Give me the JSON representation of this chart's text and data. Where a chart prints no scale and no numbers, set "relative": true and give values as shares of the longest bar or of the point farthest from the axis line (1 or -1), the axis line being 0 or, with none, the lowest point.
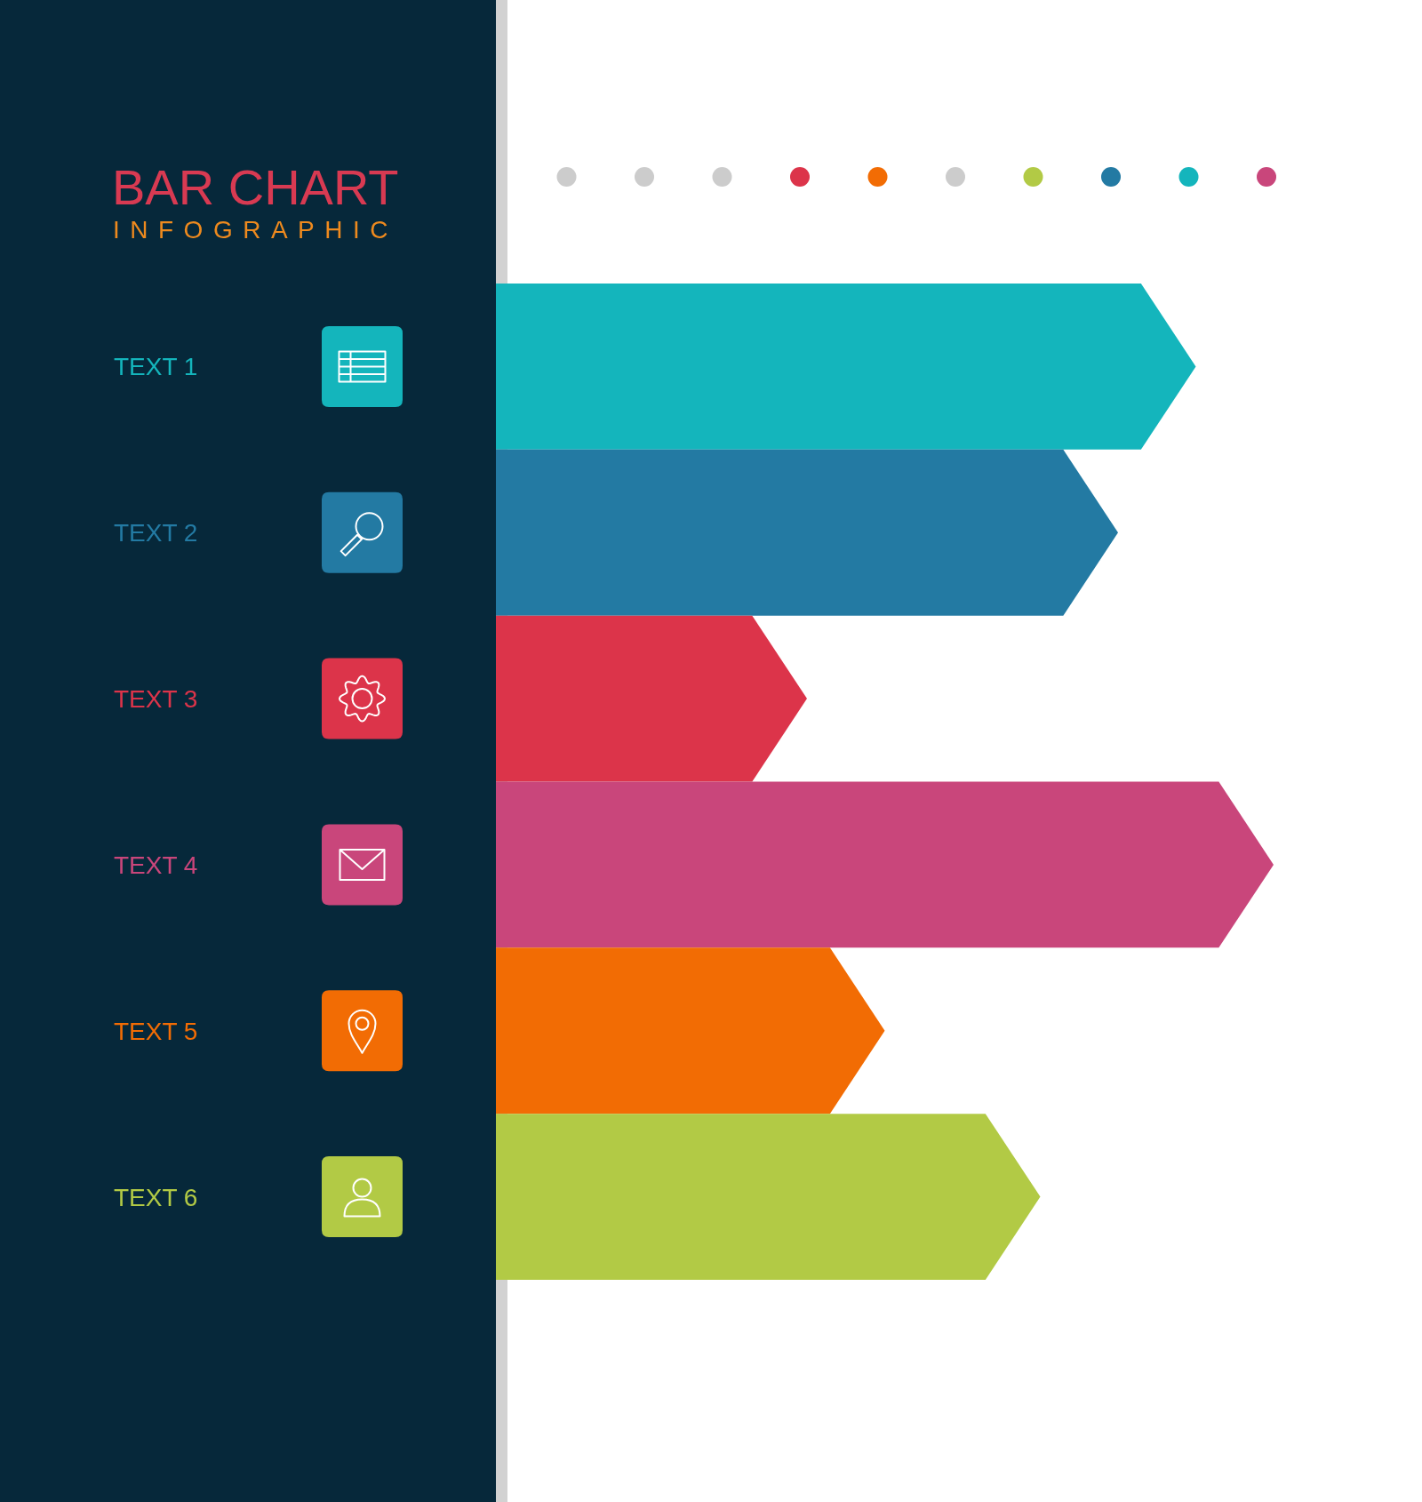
{
  "chart_data": {
    "type": "bar",
    "orientation": "horizontal",
    "relative": true,
    "title": "BAR CHART",
    "subtitle": "INFOGRAPHIC",
    "categories": [
      "TEXT 1",
      "TEXT 2",
      "TEXT 3",
      "TEXT 4",
      "TEXT 5",
      "TEXT 6"
    ],
    "values": [
      0.9,
      0.8,
      0.4,
      1,
      0.5,
      0.7
    ],
    "colors": [
      "#14b5bc",
      "#237aa3",
      "#dc344a",
      "#c9467b",
      "#f26c04",
      "#b2ca45"
    ]
  }
}
